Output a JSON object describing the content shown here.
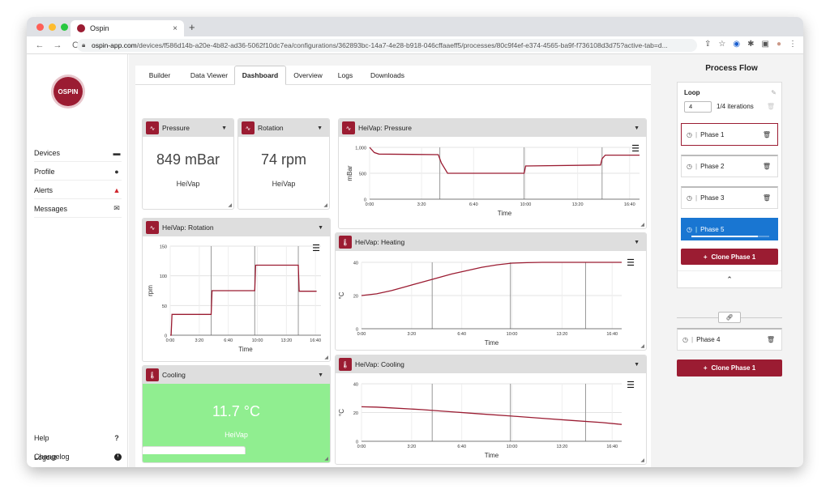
{
  "browser": {
    "tab_title": "Ospin",
    "tab_close": "×",
    "new_tab": "+",
    "url_host": "ospin-app.com",
    "url_path": "/devices/f586d14b-a20e-4b82-ad36-5062f10dc7ea/configurations/362893bc-14a7-4e28-b918-046cffaaeff5/processes/80c9f4ef-e374-4565-ba9f-f736108d3d75?active-tab=d..."
  },
  "sidebar": {
    "logo_text": "OSPIN",
    "top_items": [
      {
        "label": "Devices",
        "icon": "device-icon"
      },
      {
        "label": "Profile",
        "icon": "user-icon"
      },
      {
        "label": "Alerts",
        "icon": "bell-icon"
      },
      {
        "label": "Messages",
        "icon": "envelope-icon"
      }
    ],
    "bottom_items": [
      {
        "label": "Help",
        "glyph": "?"
      },
      {
        "label": "Changelog",
        "glyph": "i"
      },
      {
        "label": "Logout",
        "glyph": "exit"
      }
    ]
  },
  "tabs": [
    "Builder",
    "Data Viewer",
    "Dashboard",
    "Overview",
    "Logs",
    "Downloads"
  ],
  "active_tab": "Dashboard",
  "widgets": {
    "pressure": {
      "title": "Pressure",
      "value": "849 mBar",
      "device": "HeiVap"
    },
    "rotation": {
      "title": "Rotation",
      "value": "74 rpm",
      "device": "HeiVap"
    },
    "cooling": {
      "title": "Cooling",
      "value": "11.7 °C",
      "device": "HeiVap",
      "color": "#90ee90"
    }
  },
  "chart_data": [
    {
      "type": "line",
      "title": "HeiVap: Pressure",
      "ylabel": "mBar",
      "xlabel": "Time",
      "ylim": [
        0,
        1000
      ],
      "yticks": [
        "0",
        "500",
        "1,000"
      ],
      "xticks": [
        "0:00",
        "3:20",
        "6:40",
        "10:00",
        "13:20",
        "16:40"
      ],
      "xlim_min": [
        0,
        1000
      ],
      "phase_lines_min": [
        4.5,
        9.9,
        14.9
      ],
      "series": [
        {
          "x": [
            0,
            0.3,
            0.6,
            4.4,
            4.6,
            5.0,
            9.8,
            9.9,
            10.0,
            14.8,
            14.9,
            15.1,
            17.3
          ],
          "y": [
            1000,
            900,
            870,
            860,
            700,
            500,
            500,
            500,
            640,
            660,
            780,
            850,
            850
          ],
          "color": "#9b1c32"
        }
      ]
    },
    {
      "type": "line",
      "title": "HeiVap: Rotation",
      "ylabel": "rpm",
      "xlabel": "Time",
      "ylim": [
        0,
        150
      ],
      "yticks": [
        "0",
        "50",
        "100",
        "150"
      ],
      "xticks": [
        "0:00",
        "3:20",
        "6:40",
        "10:00",
        "13:20",
        "16:40"
      ],
      "phase_lines_min": [
        4.7,
        9.7,
        14.7
      ],
      "series": [
        {
          "x": [
            0,
            0.1,
            0.2,
            4.7,
            4.8,
            9.7,
            9.8,
            14.7,
            14.8,
            16.8
          ],
          "y": [
            0,
            0,
            35,
            35,
            75,
            75,
            118,
            118,
            74,
            74
          ],
          "color": "#9b1c32"
        }
      ]
    },
    {
      "type": "line",
      "title": "HeiVap: Heating",
      "ylabel": "°C",
      "xlabel": "Time",
      "ylim": [
        0,
        40
      ],
      "yticks": [
        "0",
        "20",
        "40"
      ],
      "xticks": [
        "0:00",
        "3:20",
        "6:40",
        "10:00",
        "13:20",
        "16:40"
      ],
      "phase_lines_min": [
        4.7,
        9.9,
        14.9
      ],
      "series": [
        {
          "x": [
            0,
            1,
            2,
            3,
            4,
            5,
            6,
            7,
            8,
            9,
            10,
            11,
            12,
            14,
            16,
            17.3
          ],
          "y": [
            20,
            21,
            23,
            25.5,
            28,
            30.5,
            33,
            35,
            37,
            38.5,
            39.5,
            39.8,
            40,
            40,
            40,
            40
          ],
          "color": "#9b1c32"
        }
      ]
    },
    {
      "type": "line",
      "title": "HeiVap: Cooling",
      "ylabel": "°C",
      "xlabel": "Time",
      "ylim": [
        0,
        40
      ],
      "yticks": [
        "0",
        "20",
        "40"
      ],
      "xticks": [
        "0:00",
        "3:20",
        "6:40",
        "10:00",
        "13:20",
        "16:40"
      ],
      "phase_lines_min": [
        4.7,
        9.9,
        14.9
      ],
      "series": [
        {
          "x": [
            0,
            1,
            2,
            4,
            6,
            8,
            10,
            12,
            14,
            16,
            17.3
          ],
          "y": [
            24,
            23.8,
            23.2,
            22,
            20.5,
            19,
            17.5,
            16,
            14.5,
            13,
            11.7
          ],
          "color": "#9b1c32"
        }
      ]
    }
  ],
  "process_flow": {
    "title": "Process Flow",
    "loop_label": "Loop",
    "loop_value": "4",
    "loop_iterations": "1/4 iterations",
    "phases": [
      {
        "name": "Phase 1",
        "state": "selected"
      },
      {
        "name": "Phase 2",
        "state": "normal"
      },
      {
        "name": "Phase 3",
        "state": "normal"
      },
      {
        "name": "Phase 5",
        "state": "running",
        "progress": 0.85
      }
    ],
    "clone_inner_label": "Clone Phase 1",
    "phase4_name": "Phase 4",
    "clone_outer_label": "Clone Phase 1",
    "accent": "#9b1c32",
    "running_color": "#1976d2"
  }
}
